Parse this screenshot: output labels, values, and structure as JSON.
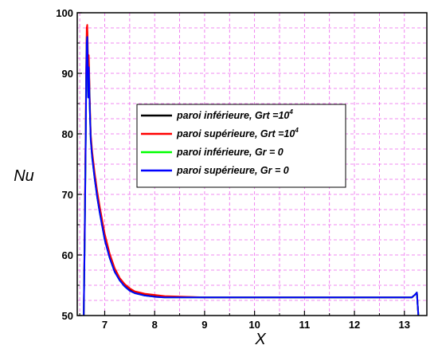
{
  "chart_data": {
    "type": "line",
    "xlabel": "X",
    "ylabel": "Nu",
    "xlim": [
      6.45,
      13.45
    ],
    "ylim": [
      50,
      100
    ],
    "xticks": [
      "7",
      "8",
      "9",
      "10",
      "11",
      "12",
      "13"
    ],
    "yticks": [
      "50",
      "60",
      "70",
      "80",
      "90",
      "100"
    ],
    "grid": "on",
    "grid_color": "#ee66ee",
    "legend_position": "center",
    "legend": [
      {
        "text": "paroi inférieure, Grt =10",
        "sup": "4"
      },
      {
        "text": "paroi supérieure, Grt =10",
        "sup": "4"
      },
      {
        "text": "paroi inférieure, Gr = 0",
        "sup": ""
      },
      {
        "text": "paroi supérieure, Gr = 0",
        "sup": ""
      }
    ],
    "series": [
      {
        "name": "paroi inférieure, Grt =10^4",
        "color": "#000000",
        "x": [
          6.58,
          6.6,
          6.62,
          6.63,
          6.64,
          6.65,
          6.66,
          6.67,
          6.68,
          6.69,
          6.7,
          6.72,
          6.75,
          6.8,
          6.85,
          6.9,
          7.0,
          7.1,
          7.2,
          7.3,
          7.4,
          7.5,
          7.6,
          7.8,
          8.0,
          8.2,
          9.0,
          10.0,
          11.0,
          12.0,
          13.0,
          13.15,
          13.22,
          13.25,
          13.28
        ],
        "y": [
          50,
          64,
          80,
          90,
          96,
          97,
          93,
          87,
          92,
          89,
          85,
          79.5,
          76.5,
          73,
          70,
          67.5,
          63,
          59.8,
          57.5,
          56,
          55,
          54.3,
          53.8,
          53.4,
          53.2,
          53.1,
          53,
          53,
          53,
          53,
          53,
          53,
          53.5,
          53.8,
          50
        ]
      },
      {
        "name": "paroi supérieure, Grt =10^4",
        "color": "#ff0000",
        "x": [
          6.58,
          6.6,
          6.62,
          6.63,
          6.64,
          6.65,
          6.66,
          6.67,
          6.68,
          6.69,
          6.7,
          6.72,
          6.75,
          6.8,
          6.85,
          6.9,
          7.0,
          7.1,
          7.2,
          7.3,
          7.4,
          7.5,
          7.6,
          7.8,
          8.0,
          8.2,
          9.0,
          10.0,
          11.0,
          12.0,
          13.0,
          13.15,
          13.22,
          13.25,
          13.28
        ],
        "y": [
          50,
          65,
          82,
          92,
          97.5,
          98,
          95,
          89,
          93,
          90,
          86,
          80,
          77,
          73.5,
          70.5,
          68,
          63.5,
          60.2,
          57.8,
          56.2,
          55.2,
          54.5,
          54,
          53.6,
          53.4,
          53.2,
          53,
          53,
          53,
          53,
          53,
          53,
          53.5,
          53.8,
          50
        ]
      },
      {
        "name": "paroi inférieure, Gr = 0",
        "color": "#00ff00",
        "x": [
          6.58,
          6.6,
          6.62,
          6.63,
          6.64,
          6.65,
          6.66,
          6.67,
          6.68,
          6.69,
          6.7,
          6.72,
          6.75,
          6.8,
          6.85,
          6.9,
          7.0,
          7.1,
          7.2,
          7.3,
          7.4,
          7.5,
          7.6,
          7.8,
          8.0,
          8.2,
          9.0,
          10.0,
          11.0,
          12.0,
          13.0,
          13.15,
          13.22,
          13.25,
          13.28
        ],
        "y": [
          50,
          63,
          79,
          89,
          95,
          96,
          92,
          86,
          91,
          88,
          84.5,
          79,
          76,
          72.5,
          69.5,
          67,
          62.5,
          59.5,
          57.2,
          55.8,
          54.8,
          54.1,
          53.7,
          53.3,
          53.1,
          53,
          53,
          53,
          53,
          53,
          53,
          53,
          53.5,
          53.8,
          50
        ]
      },
      {
        "name": "paroi supérieure, Gr = 0",
        "color": "#0000ff",
        "x": [
          6.58,
          6.6,
          6.62,
          6.63,
          6.64,
          6.65,
          6.66,
          6.67,
          6.68,
          6.69,
          6.7,
          6.72,
          6.75,
          6.8,
          6.85,
          6.9,
          7.0,
          7.1,
          7.2,
          7.3,
          7.4,
          7.5,
          7.6,
          7.8,
          8.0,
          8.2,
          9.0,
          10.0,
          11.0,
          12.0,
          13.0,
          13.15,
          13.22,
          13.25,
          13.28
        ],
        "y": [
          50,
          63,
          79,
          89,
          95,
          96,
          92,
          86,
          91,
          88,
          84.5,
          79,
          76,
          72.5,
          69.5,
          67,
          62.5,
          59.5,
          57.2,
          55.8,
          54.8,
          54.1,
          53.7,
          53.3,
          53.1,
          53,
          53,
          53,
          53,
          53,
          53,
          53,
          53.5,
          53.8,
          50
        ]
      }
    ]
  }
}
